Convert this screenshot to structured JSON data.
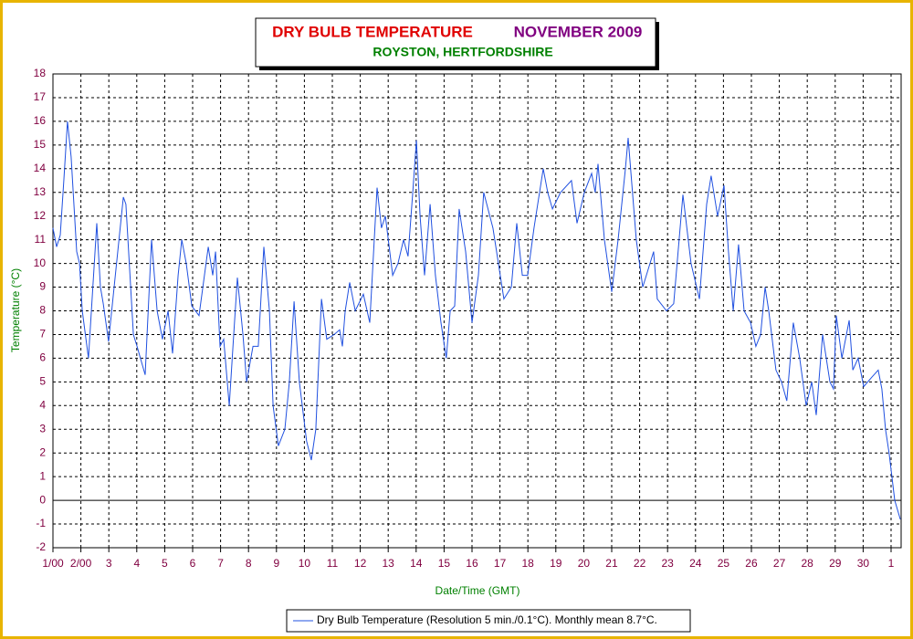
{
  "chart_data": {
    "type": "line",
    "title": "DRY BULB TEMPERATURE",
    "title_month": "NOVEMBER 2009",
    "subtitle": "ROYSTON, HERTFORDSHIRE",
    "x_label": "Date/Time (GMT)",
    "y_label": "Temperature (°C)",
    "legend_label": "Dry Bulb Temperature (Resolution 5 min./0.1°C). Monthly mean 8.7°C.",
    "grid": true,
    "xlim": [
      0,
      30.36
    ],
    "ylim": [
      -2,
      18
    ],
    "yticks": [
      -2,
      -1,
      0,
      1,
      2,
      3,
      4,
      5,
      6,
      7,
      8,
      9,
      10,
      11,
      12,
      13,
      14,
      15,
      16,
      17,
      18
    ],
    "xticks": [
      {
        "value": 0,
        "label": "1/00"
      },
      {
        "value": 1,
        "label": "2/00"
      },
      {
        "value": 2,
        "label": "3"
      },
      {
        "value": 3,
        "label": "4"
      },
      {
        "value": 4,
        "label": "5"
      },
      {
        "value": 5,
        "label": "6"
      },
      {
        "value": 6,
        "label": "7"
      },
      {
        "value": 7,
        "label": "8"
      },
      {
        "value": 8,
        "label": "9"
      },
      {
        "value": 9,
        "label": "10"
      },
      {
        "value": 10,
        "label": "11"
      },
      {
        "value": 11,
        "label": "12"
      },
      {
        "value": 12,
        "label": "13"
      },
      {
        "value": 13,
        "label": "14"
      },
      {
        "value": 14,
        "label": "15"
      },
      {
        "value": 15,
        "label": "16"
      },
      {
        "value": 16,
        "label": "17"
      },
      {
        "value": 17,
        "label": "18"
      },
      {
        "value": 18,
        "label": "19"
      },
      {
        "value": 19,
        "label": "20"
      },
      {
        "value": 20,
        "label": "21"
      },
      {
        "value": 21,
        "label": "22"
      },
      {
        "value": 22,
        "label": "23"
      },
      {
        "value": 23,
        "label": "24"
      },
      {
        "value": 24,
        "label": "25"
      },
      {
        "value": 25,
        "label": "26"
      },
      {
        "value": 26,
        "label": "27"
      },
      {
        "value": 27,
        "label": "28"
      },
      {
        "value": 28,
        "label": "29"
      },
      {
        "value": 29,
        "label": "30"
      },
      {
        "value": 30,
        "label": "1"
      }
    ],
    "x": [
      0,
      0.13,
      0.26,
      0.39,
      0.52,
      0.65,
      0.85,
      0.95,
      1.05,
      1.27,
      1.57,
      1.7,
      1.8,
      1.99,
      2.19,
      2.52,
      2.61,
      2.88,
      3.01,
      3.3,
      3.53,
      3.73,
      3.92,
      4.12,
      4.28,
      4.48,
      4.61,
      4.77,
      4.97,
      5.23,
      5.56,
      5.72,
      5.82,
      5.98,
      6.11,
      6.31,
      6.47,
      6.6,
      6.8,
      6.93,
      7.16,
      7.35,
      7.55,
      7.75,
      7.88,
      8.07,
      8.3,
      8.46,
      8.63,
      8.82,
      9.08,
      9.25,
      9.41,
      9.61,
      9.8,
      10.07,
      10.26,
      10.36,
      10.46,
      10.62,
      10.82,
      11.11,
      11.34,
      11.6,
      11.76,
      11.9,
      12.16,
      12.35,
      12.55,
      12.71,
      12.88,
      13.01,
      13.14,
      13.3,
      13.5,
      13.69,
      13.89,
      14.08,
      14.22,
      14.38,
      14.54,
      14.77,
      15.0,
      15.23,
      15.42,
      15.75,
      16.14,
      16.41,
      16.6,
      16.8,
      16.99,
      17.22,
      17.55,
      17.71,
      17.88,
      18.17,
      18.56,
      18.76,
      19.02,
      19.28,
      19.41,
      19.51,
      19.74,
      20.0,
      20.23,
      20.49,
      20.59,
      20.88,
      21.11,
      21.5,
      21.63,
      21.96,
      22.22,
      22.55,
      22.84,
      23.14,
      23.4,
      23.56,
      23.79,
      24.02,
      24.18,
      24.35,
      24.54,
      24.74,
      24.97,
      25.16,
      25.33,
      25.49,
      25.62,
      25.88,
      26.08,
      26.27,
      26.5,
      26.73,
      26.96,
      27.16,
      27.32,
      27.55,
      27.81,
      27.94,
      28.04,
      28.24,
      28.5,
      28.63,
      28.82,
      29.02,
      29.31,
      29.54,
      29.67,
      29.8,
      29.93,
      30.13,
      30.33
    ],
    "series": [
      {
        "name": "Dry Bulb Temperature",
        "color": "#2050e0",
        "values": [
          11.5,
          10.7,
          11.2,
          13.5,
          16.0,
          14.5,
          10.5,
          10.0,
          8.0,
          6.0,
          11.7,
          9.0,
          8.3,
          6.7,
          9.0,
          12.8,
          12.5,
          7.0,
          6.5,
          5.3,
          11.0,
          8.0,
          6.8,
          8.0,
          6.2,
          9.5,
          11.0,
          10.0,
          8.2,
          7.8,
          10.7,
          9.5,
          10.5,
          6.5,
          6.8,
          4.0,
          7.0,
          9.4,
          7.0,
          5.0,
          6.5,
          6.5,
          10.7,
          8.0,
          4.0,
          2.3,
          3.0,
          5.0,
          8.4,
          5.0,
          2.5,
          1.7,
          3.0,
          8.5,
          6.8,
          7.0,
          7.2,
          6.5,
          8.0,
          9.2,
          8.0,
          8.7,
          7.5,
          13.2,
          11.5,
          12.0,
          9.5,
          10.0,
          11.0,
          10.3,
          13.0,
          15.2,
          12.0,
          9.5,
          12.5,
          9.5,
          7.5,
          6.0,
          8.0,
          8.2,
          12.3,
          10.5,
          7.5,
          9.5,
          13.0,
          11.5,
          8.5,
          9.0,
          11.7,
          9.5,
          9.5,
          11.5,
          14.0,
          13.0,
          12.3,
          13.0,
          13.5,
          11.7,
          13.0,
          13.8,
          13.0,
          14.2,
          11.0,
          8.8,
          11.0,
          14.0,
          15.3,
          11.0,
          9.0,
          10.5,
          8.5,
          8.0,
          8.3,
          12.9,
          10.0,
          8.5,
          12.5,
          13.7,
          12.0,
          13.3,
          10.5,
          8.0,
          10.8,
          8.0,
          7.5,
          6.5,
          7.0,
          9.0,
          8.0,
          5.5,
          5.0,
          4.2,
          7.5,
          6.0,
          4.0,
          5.0,
          3.6,
          7.0,
          5.0,
          4.7,
          7.8,
          6.0,
          7.6,
          5.5,
          6.0,
          4.8,
          5.2,
          5.5,
          4.7,
          3.0,
          2.0,
          0.0,
          -0.8
        ]
      }
    ]
  }
}
